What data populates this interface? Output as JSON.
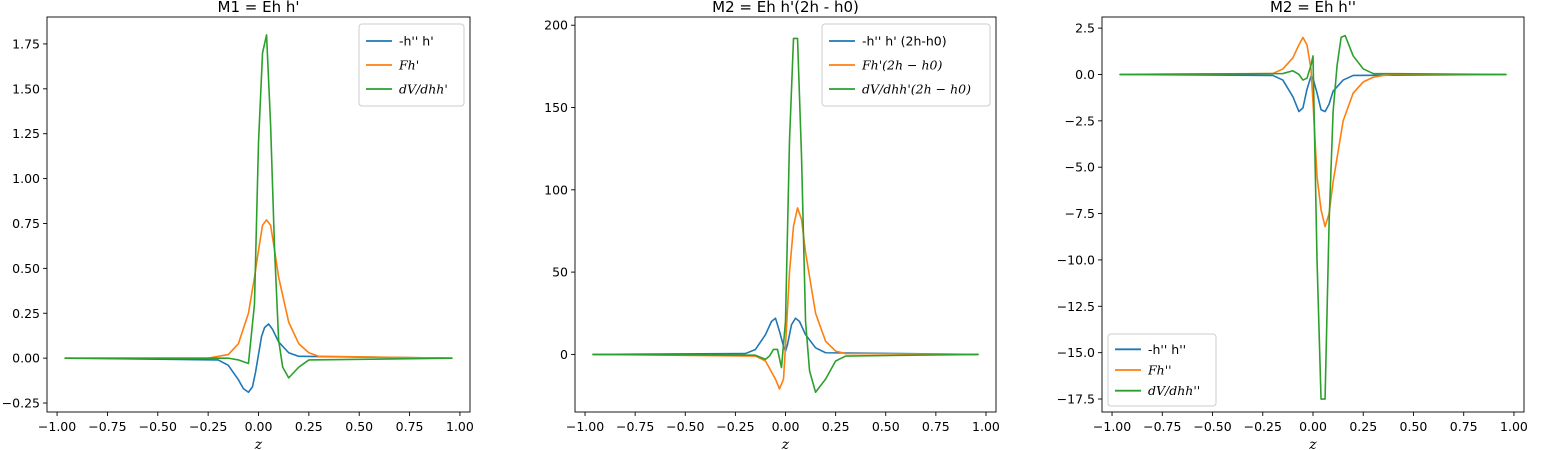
{
  "chart_data": [
    {
      "type": "line",
      "title": "M1 = Eh h'",
      "xlabel": "z",
      "ylabel": "",
      "xlim": [
        -1.05,
        1.05
      ],
      "ylim": [
        -0.3,
        1.9
      ],
      "xticks": [
        -1.0,
        -0.75,
        -0.5,
        -0.25,
        0.0,
        0.25,
        0.5,
        0.75,
        1.0
      ],
      "xtick_labels": [
        "−1.00",
        "−0.75",
        "−0.50",
        "−0.25",
        "0.00",
        "0.25",
        "0.50",
        "0.75",
        "1.00"
      ],
      "yticks": [
        -0.25,
        0.0,
        0.25,
        0.5,
        0.75,
        1.0,
        1.25,
        1.5,
        1.75
      ],
      "ytick_labels": [
        "−0.25",
        "0.00",
        "0.25",
        "0.50",
        "0.75",
        "1.00",
        "1.25",
        "1.50",
        "1.75"
      ],
      "legend_placement": "upper-right",
      "series": [
        {
          "name": "-h'' h'",
          "math": false,
          "color": "#1f77b4",
          "x": [
            -0.96,
            -0.2,
            -0.15,
            -0.1,
            -0.075,
            -0.05,
            -0.03,
            -0.015,
            0.0,
            0.015,
            0.03,
            0.05,
            0.07,
            0.1,
            0.15,
            0.2,
            0.96
          ],
          "y": [
            0,
            -0.01,
            -0.04,
            -0.12,
            -0.17,
            -0.19,
            -0.16,
            -0.08,
            0.02,
            0.12,
            0.17,
            0.19,
            0.16,
            0.09,
            0.03,
            0.01,
            0
          ]
        },
        {
          "name": "Fh'",
          "math": true,
          "color": "#ff7f0e",
          "x": [
            -0.96,
            -0.25,
            -0.15,
            -0.1,
            -0.05,
            -0.02,
            0.0,
            0.02,
            0.04,
            0.06,
            0.08,
            0.1,
            0.15,
            0.2,
            0.25,
            0.3,
            0.96
          ],
          "y": [
            0,
            0.0,
            0.02,
            0.08,
            0.25,
            0.45,
            0.6,
            0.74,
            0.77,
            0.74,
            0.6,
            0.45,
            0.2,
            0.08,
            0.03,
            0.01,
            0
          ]
        },
        {
          "name": "dV/dhh'",
          "math": true,
          "color": "#2ca02c",
          "x": [
            -0.96,
            -0.15,
            -0.1,
            -0.05,
            -0.02,
            0.0,
            0.02,
            0.04,
            0.06,
            0.08,
            0.1,
            0.12,
            0.15,
            0.2,
            0.25,
            0.96
          ],
          "y": [
            0,
            0.0,
            -0.01,
            -0.03,
            0.3,
            1.2,
            1.7,
            1.8,
            1.3,
            0.6,
            0.1,
            -0.05,
            -0.11,
            -0.05,
            -0.01,
            0
          ]
        }
      ]
    },
    {
      "type": "line",
      "title": "M2 = Eh h'(2h - h0)",
      "xlabel": "z",
      "ylabel": "",
      "xlim": [
        -1.05,
        1.05
      ],
      "ylim": [
        -35,
        205
      ],
      "xticks": [
        -1.0,
        -0.75,
        -0.5,
        -0.25,
        0.0,
        0.25,
        0.5,
        0.75,
        1.0
      ],
      "xtick_labels": [
        "−1.00",
        "−0.75",
        "−0.50",
        "−0.25",
        "0.00",
        "0.25",
        "0.50",
        "0.75",
        "1.00"
      ],
      "yticks": [
        0,
        50,
        100,
        150,
        200
      ],
      "ytick_labels": [
        "0",
        "50",
        "100",
        "150",
        "200"
      ],
      "legend_placement": "upper-right",
      "series": [
        {
          "name": "-h'' h' (2h-h0)",
          "math": false,
          "color": "#1f77b4",
          "x": [
            -0.96,
            -0.2,
            -0.15,
            -0.1,
            -0.07,
            -0.05,
            -0.03,
            -0.01,
            0.0,
            0.01,
            0.03,
            0.05,
            0.07,
            0.1,
            0.15,
            0.2,
            0.96
          ],
          "y": [
            0,
            0.5,
            3,
            12,
            20,
            22,
            14,
            5,
            2,
            6,
            18,
            22,
            20,
            12,
            4,
            1,
            0
          ]
        },
        {
          "name": "Fh'(2h − h0)",
          "math": true,
          "color": "#ff7f0e",
          "x": [
            -0.96,
            -0.15,
            -0.1,
            -0.05,
            -0.03,
            -0.01,
            0.0,
            0.02,
            0.04,
            0.06,
            0.08,
            0.1,
            0.15,
            0.2,
            0.25,
            0.3,
            0.96
          ],
          "y": [
            0,
            -1,
            -4,
            -15,
            -21,
            -15,
            5,
            50,
            78,
            89,
            82,
            62,
            25,
            8,
            2,
            0.5,
            0
          ]
        },
        {
          "name": "dV/dhh'(2h − h0)",
          "math": true,
          "color": "#2ca02c",
          "x": [
            -0.96,
            -0.15,
            -0.1,
            -0.08,
            -0.06,
            -0.04,
            -0.02,
            0.0,
            0.02,
            0.04,
            0.06,
            0.08,
            0.1,
            0.12,
            0.15,
            0.2,
            0.25,
            0.3,
            0.96
          ],
          "y": [
            0,
            -0.5,
            -3,
            -1,
            3,
            3,
            -8,
            20,
            130,
            192,
            192,
            120,
            20,
            -10,
            -23,
            -15,
            -4,
            -1,
            0
          ]
        }
      ]
    },
    {
      "type": "line",
      "title": "M2 = Eh h''",
      "xlabel": "z",
      "ylabel": "",
      "xlim": [
        -1.05,
        1.05
      ],
      "ylim": [
        -18.2,
        3.1
      ],
      "xticks": [
        -1.0,
        -0.75,
        -0.5,
        -0.25,
        0.0,
        0.25,
        0.5,
        0.75,
        1.0
      ],
      "xtick_labels": [
        "−1.00",
        "−0.75",
        "−0.50",
        "−0.25",
        "0.00",
        "0.25",
        "0.50",
        "0.75",
        "1.00"
      ],
      "yticks": [
        2.5,
        0.0,
        -2.5,
        -5.0,
        -7.5,
        -10.0,
        -12.5,
        -15.0,
        -17.5
      ],
      "ytick_labels": [
        "2.5",
        "0.0",
        "−2.5",
        "−5.0",
        "−7.5",
        "−10.0",
        "−12.5",
        "−15.0",
        "−17.5"
      ],
      "legend_placement": "lower-left",
      "series": [
        {
          "name": "-h'' h''",
          "math": false,
          "color": "#1f77b4",
          "x": [
            -0.96,
            -0.2,
            -0.15,
            -0.1,
            -0.07,
            -0.05,
            -0.03,
            -0.01,
            0.0,
            0.02,
            0.04,
            0.06,
            0.08,
            0.1,
            0.15,
            0.2,
            0.96
          ],
          "y": [
            0,
            -0.05,
            -0.3,
            -1.2,
            -2.0,
            -1.8,
            -0.8,
            -0.1,
            -0.2,
            -1.0,
            -1.9,
            -2.0,
            -1.6,
            -0.9,
            -0.3,
            -0.05,
            0
          ]
        },
        {
          "name": "Fh''",
          "math": true,
          "color": "#ff7f0e",
          "x": [
            -0.96,
            -0.2,
            -0.15,
            -0.1,
            -0.07,
            -0.05,
            -0.03,
            -0.01,
            0.0,
            0.01,
            0.02,
            0.04,
            0.06,
            0.08,
            0.1,
            0.15,
            0.2,
            0.25,
            0.3,
            0.35,
            0.4,
            0.96
          ],
          "y": [
            0,
            0.05,
            0.3,
            0.9,
            1.6,
            2.0,
            1.6,
            0.3,
            -1.5,
            -3.5,
            -5.5,
            -7.3,
            -8.2,
            -7.5,
            -5.8,
            -2.5,
            -1.0,
            -0.4,
            -0.15,
            -0.05,
            0,
            0
          ]
        },
        {
          "name": "dV/dhh''",
          "math": true,
          "color": "#2ca02c",
          "x": [
            -0.96,
            -0.15,
            -0.1,
            -0.07,
            -0.05,
            -0.03,
            -0.01,
            0.0,
            0.02,
            0.04,
            0.06,
            0.08,
            0.1,
            0.12,
            0.14,
            0.16,
            0.2,
            0.25,
            0.3,
            0.96
          ],
          "y": [
            0,
            0.05,
            0.2,
            0.0,
            -0.3,
            -0.2,
            0.5,
            1.0,
            -10.0,
            -17.5,
            -17.5,
            -8.0,
            -2.0,
            0.5,
            2.0,
            2.1,
            1.0,
            0.3,
            0.05,
            0
          ]
        }
      ]
    }
  ]
}
